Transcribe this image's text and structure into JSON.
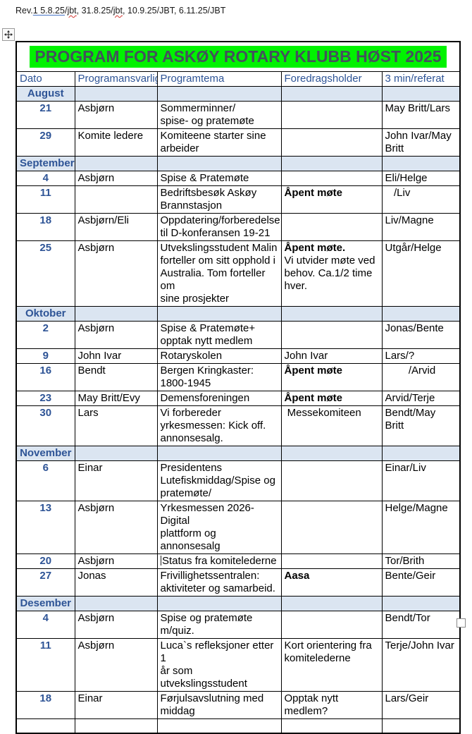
{
  "colors": {
    "accent_blue": "#2E5496",
    "section_row_bg": "#DBE5F1",
    "title_highlight_green": "#00F200",
    "title_text": "#44515C",
    "table_border": "#000000",
    "spellcheck_red": "#D3342E",
    "revision_underline_blue": "#4472C4"
  },
  "revision": {
    "segments": [
      {
        "text": "Rev.",
        "style": "plain"
      },
      {
        "text": "1 5.8.25",
        "style": "ins"
      },
      {
        "text": "/",
        "style": "plain"
      },
      {
        "text": "jbt",
        "style": "spell"
      },
      {
        "text": ", 31.8.25/",
        "style": "plain"
      },
      {
        "text": "jbt",
        "style": "spell"
      },
      {
        "text": ", 10.9.25/JBT, 6.11.25/JBT",
        "style": "plain"
      }
    ]
  },
  "handles": {
    "move_handle_icon": "move-cross-arrows-icon",
    "resize_handle_icon": "table-resize-square-icon"
  },
  "table": {
    "title": "PROGRAM FOR ASKØY ROTARY KLUBB HØST 2025",
    "columns": [
      "Dato",
      "Programansvarlig",
      "Programtema",
      "Foredragsholder",
      "3 min/referat"
    ],
    "rows": [
      {
        "type": "section",
        "label": "August"
      },
      {
        "type": "event",
        "date": "21",
        "responsible": "Asbjørn",
        "theme": "Sommerminner/\nspise- og pratemøte",
        "speaker_bold": "",
        "speaker": "",
        "referat": "May Britt/Lars"
      },
      {
        "type": "event",
        "date": "29",
        "responsible": "Komite ledere",
        "theme": "Komiteene starter sine\narbeider",
        "speaker_bold": "",
        "speaker": "",
        "referat": "John Ivar/May\nBritt"
      },
      {
        "type": "section",
        "label": "September"
      },
      {
        "type": "event",
        "date": "4",
        "responsible": "Asbjørn",
        "theme": "Spise & Pratemøte",
        "speaker_bold": "",
        "speaker": "",
        "referat": "Eli/Helge"
      },
      {
        "type": "event",
        "date": "11",
        "responsible": "",
        "theme": "Bedriftsbesøk Askøy\nBrannstasjon",
        "speaker_bold": "Åpent møte",
        "speaker": "",
        "referat": "   /Liv"
      },
      {
        "type": "event",
        "date": "18",
        "responsible": "Asbjørn/Eli",
        "theme": "Oppdatering/forberedelse\ntil D-konferansen 19-21",
        "speaker_bold": "",
        "speaker": "",
        "referat": "Liv/Magne"
      },
      {
        "type": "event",
        "date": "25",
        "responsible": "Asbjørn",
        "theme": "Utvekslingsstudent Malin\nforteller om sitt opphold i\nAustralia. Tom forteller om\nsine prosjekter",
        "speaker_bold": "Åpent møte.",
        "speaker": "\nVi utvider møte ved\nbehov. Ca.1/2 time\nhver.",
        "referat": "Utgår/Helge"
      },
      {
        "type": "section",
        "label": "Oktober"
      },
      {
        "type": "event",
        "date": "2",
        "responsible": "Asbjørn",
        "theme": "Spise & Pratemøte+\nopptak nytt medlem",
        "speaker_bold": "",
        "speaker": "",
        "referat": "Jonas/Bente"
      },
      {
        "type": "event",
        "date": "9",
        "responsible": "John Ivar",
        "theme": "Rotaryskolen",
        "speaker_bold": "",
        "speaker": "John Ivar",
        "referat": "Lars/?"
      },
      {
        "type": "event",
        "date": "16",
        "responsible": "Bendt",
        "theme": "Bergen Kringkaster:\n1800-1945",
        "speaker_bold": "Åpent møte",
        "speaker": "",
        "referat": "        /Arvid"
      },
      {
        "type": "event",
        "date": "23",
        "responsible": "May Britt/Evy",
        "theme": "Demensforeningen",
        "speaker_bold": "Åpent møte",
        "speaker": "",
        "referat": "Arvid/Terje"
      },
      {
        "type": "event",
        "date": "30",
        "responsible": "Lars",
        "theme": "Vi forbereder\nyrkesmessen: Kick off.\nannonsesalg.",
        "speaker_bold": "",
        "speaker": " Messekomiteen",
        "referat": "Bendt/May\nBritt"
      },
      {
        "type": "section",
        "label": "November"
      },
      {
        "type": "event",
        "date": "6",
        "responsible": "Einar",
        "theme": "Presidentens\nLutefiskmiddag/Spise og\npratemøte/",
        "speaker_bold": "",
        "speaker": "",
        "referat": "Einar/Liv"
      },
      {
        "type": "event",
        "date": "13",
        "responsible": "Asbjørn",
        "theme": "Yrkesmessen 2026- Digital\nplattform og annonsesalg",
        "speaker_bold": "",
        "speaker": "",
        "referat": "Helge/Magne"
      },
      {
        "type": "event",
        "date": "20",
        "responsible": "Asbjørn",
        "theme": "Status fra komitelederne",
        "caret_before_theme": true,
        "speaker_bold": "",
        "speaker": "",
        "referat": "Tor/Brith"
      },
      {
        "type": "event",
        "date": "27",
        "responsible": "Jonas",
        "theme": "Frivillighetssentralen:\naktiviteter og samarbeid.",
        "speaker_bold": "Aasa",
        "speaker": "",
        "referat": "Bente/Geir"
      },
      {
        "type": "section",
        "label": "Desember"
      },
      {
        "type": "event",
        "date": "4",
        "responsible": "Asbjørn",
        "theme": "Spise og pratemøte\nm/quiz.",
        "speaker_bold": "",
        "speaker": "",
        "referat": "Bendt/Tor"
      },
      {
        "type": "event",
        "date": "11",
        "responsible": "Asbjørn",
        "theme": "Luca`s refleksjoner etter 1\når som utvekslingsstudent",
        "speaker_bold": "",
        "speaker": "Kort orientering fra\nkomitelederne",
        "referat": "Terje/John Ivar"
      },
      {
        "type": "event",
        "date": "18",
        "responsible": "Einar",
        "theme": "Førjulsavslutning med\nmiddag",
        "speaker_bold": "",
        "speaker": "Opptak nytt\nmedlem?",
        "referat": "Lars/Geir"
      },
      {
        "type": "empty"
      }
    ]
  }
}
